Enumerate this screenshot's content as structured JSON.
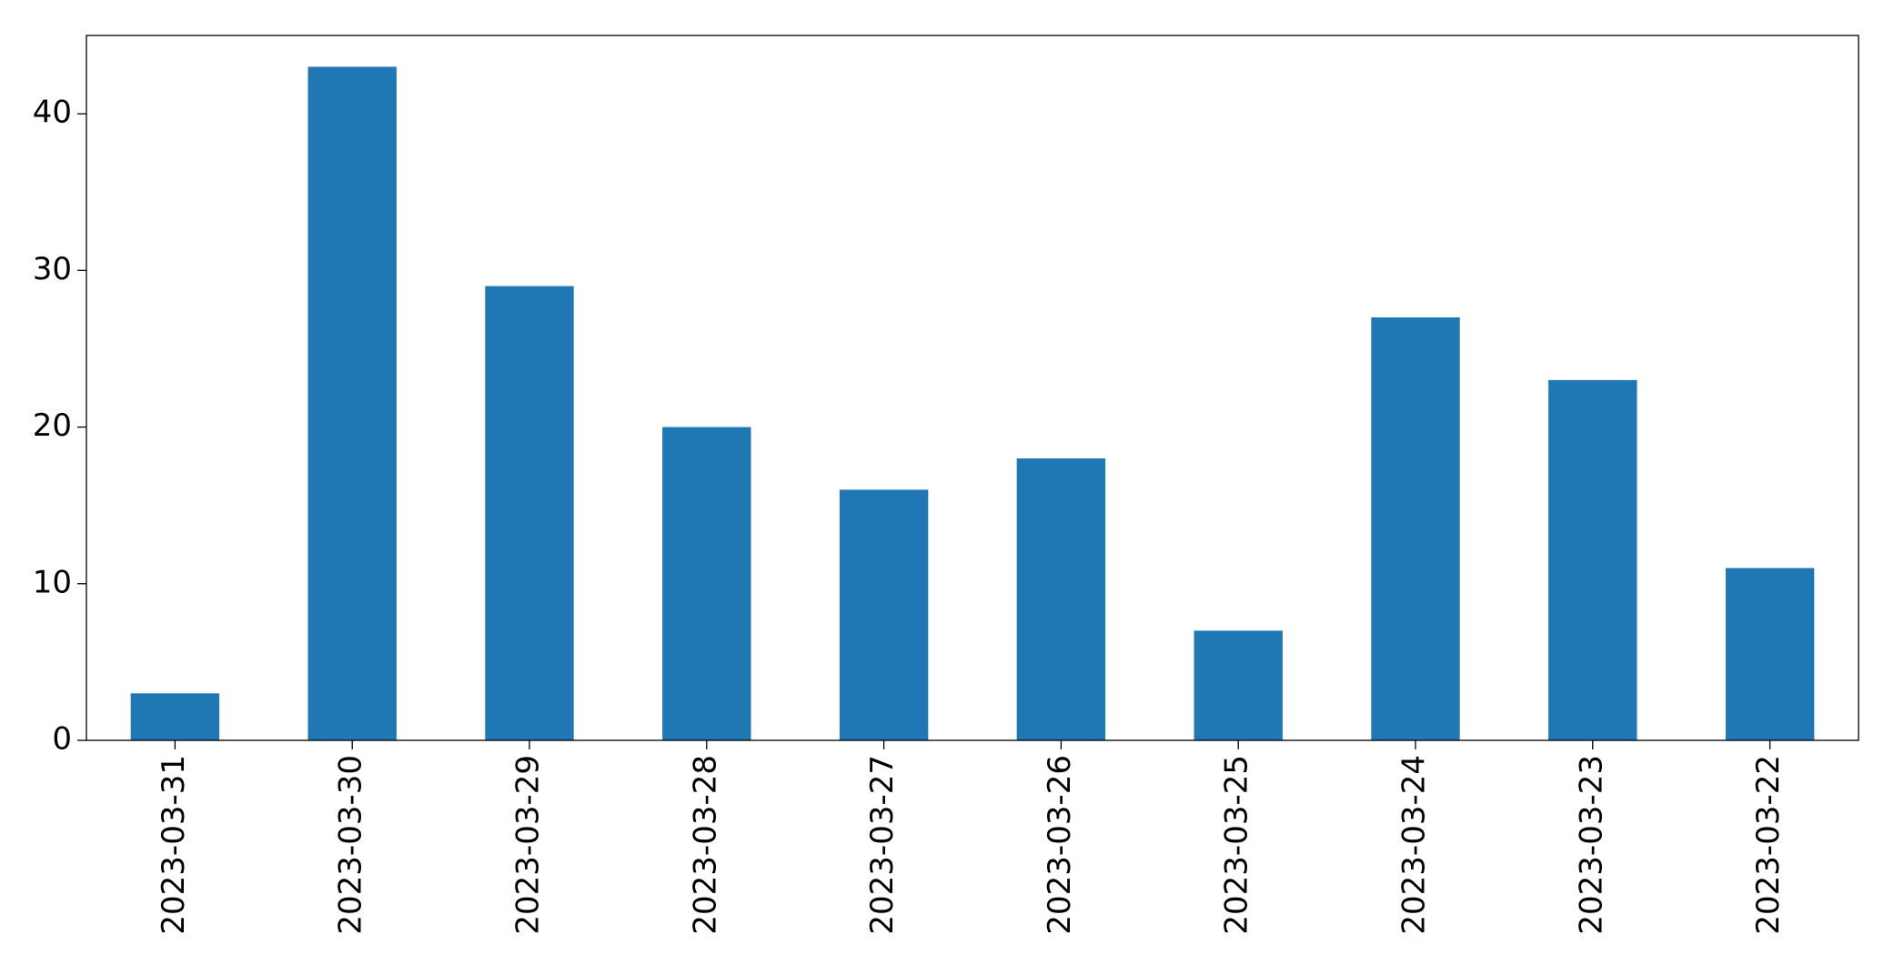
{
  "chart_data": {
    "type": "bar",
    "categories": [
      "2023-03-31",
      "2023-03-30",
      "2023-03-29",
      "2023-03-28",
      "2023-03-27",
      "2023-03-26",
      "2023-03-25",
      "2023-03-24",
      "2023-03-23",
      "2023-03-22"
    ],
    "values": [
      3,
      43,
      29,
      20,
      16,
      18,
      7,
      27,
      23,
      11
    ],
    "title": "",
    "xlabel": "",
    "ylabel": "",
    "ylim": [
      0,
      45
    ],
    "yticks": [
      0,
      10,
      20,
      30,
      40
    ],
    "grid": false,
    "bar_color": "#1f77b4"
  }
}
